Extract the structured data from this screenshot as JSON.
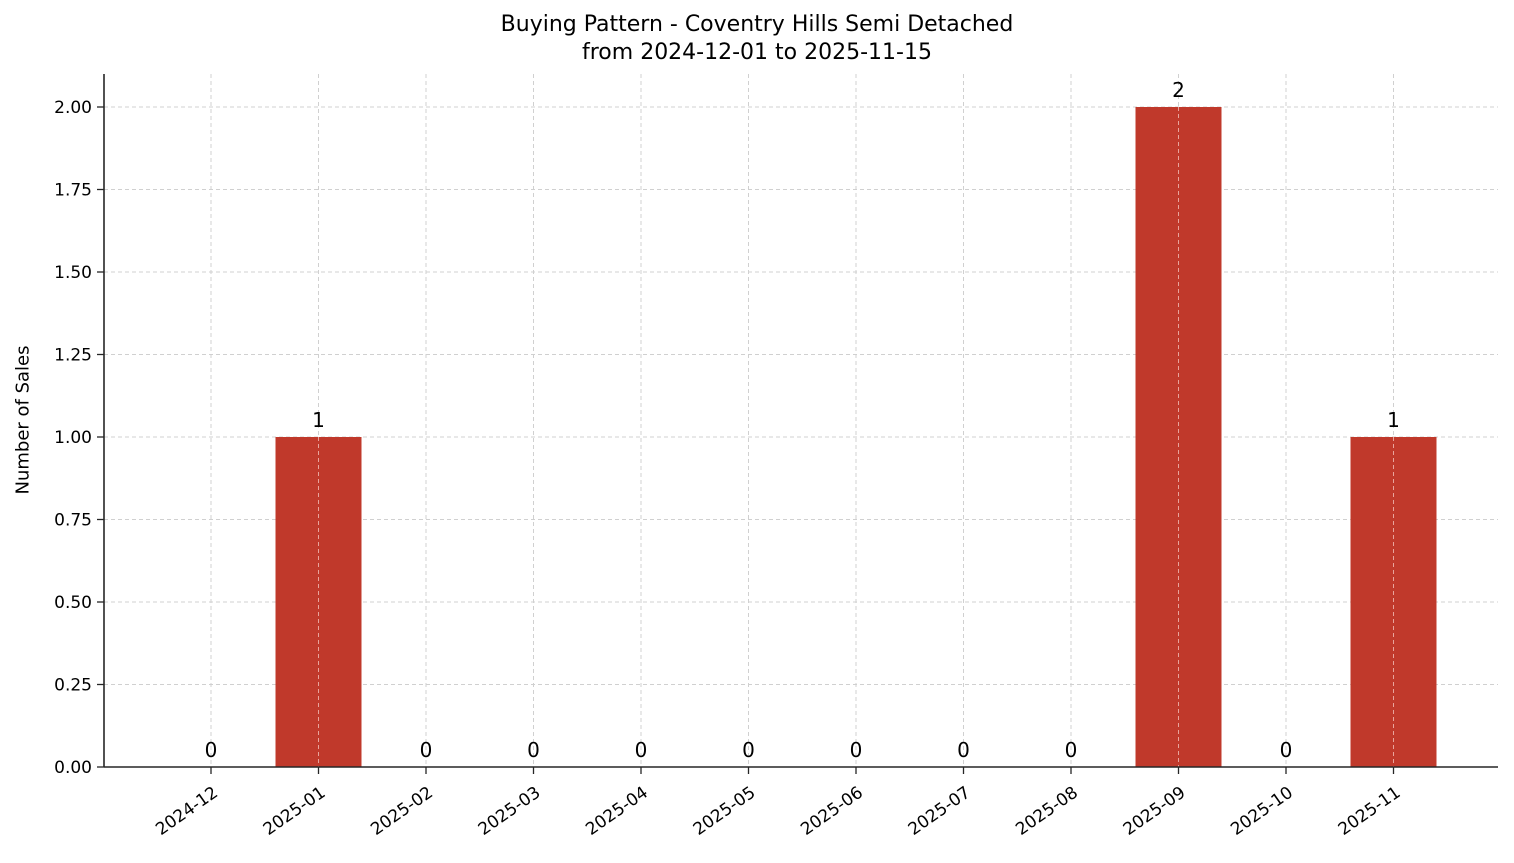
{
  "chart_data": {
    "type": "bar",
    "title": "Buying Pattern - Coventry Hills Semi Detached",
    "subtitle": "from 2024-12-01 to 2025-11-15",
    "xlabel": "",
    "ylabel": "Number of Sales",
    "categories": [
      "2024-12",
      "2025-01",
      "2025-02",
      "2025-03",
      "2025-04",
      "2025-05",
      "2025-06",
      "2025-07",
      "2025-08",
      "2025-09",
      "2025-10",
      "2025-11"
    ],
    "values": [
      0,
      1,
      0,
      0,
      0,
      0,
      0,
      0,
      0,
      2,
      0,
      1
    ],
    "data_labels": [
      "0",
      "1",
      "0",
      "0",
      "0",
      "0",
      "0",
      "0",
      "0",
      "2",
      "0",
      "1"
    ],
    "ylim": [
      0,
      2.1
    ],
    "yticks": [
      0,
      0.25,
      0.5,
      0.75,
      1.0,
      1.25,
      1.5,
      1.75,
      2.0
    ],
    "ytick_labels": [
      "0.00",
      "0.25",
      "0.50",
      "0.75",
      "1.00",
      "1.25",
      "1.50",
      "1.75",
      "2.00"
    ],
    "grid": true,
    "legend": null,
    "bar_color": "#c0392b",
    "xtick_rotation": 35
  }
}
